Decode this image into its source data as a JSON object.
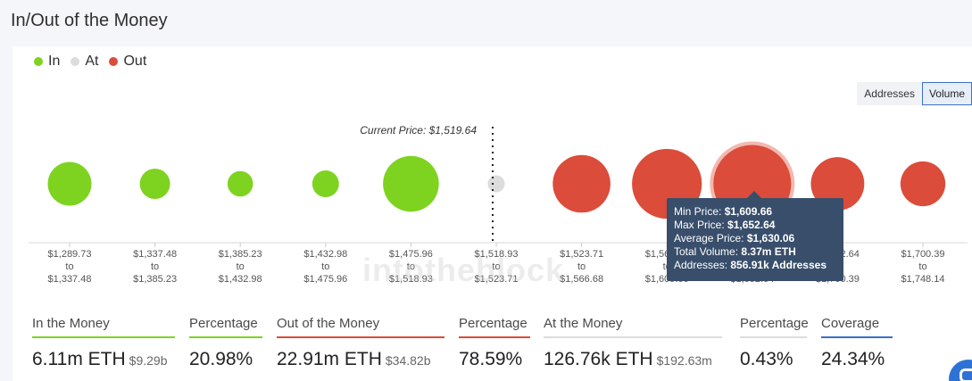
{
  "title": "In/Out of the Money",
  "legend": [
    {
      "label": "In",
      "color": "#7ed321"
    },
    {
      "label": "At",
      "color": "#dcdcdc"
    },
    {
      "label": "Out",
      "color": "#db4c3a"
    }
  ],
  "toggle": {
    "addresses": "Addresses",
    "volume": "Volume",
    "active": "Volume"
  },
  "current_price_label": "Current Price: $1,519.64",
  "watermark": "intotheblock",
  "tooltip": {
    "min_label": "Min Price:",
    "min_value": "$1,609.66",
    "max_label": "Max Price:",
    "max_value": "$1,652.64",
    "avg_label": "Average Price:",
    "avg_value": "$1,630.06",
    "vol_label": "Total Volume:",
    "vol_value": "8.37m ETH",
    "addr_label": "Addresses:",
    "addr_value": "856.91k Addresses"
  },
  "chart_data": {
    "type": "scatter",
    "title": "",
    "buckets": [
      {
        "from": "$1,289.73",
        "to": "$1,337.48",
        "status": "in"
      },
      {
        "from": "$1,337.48",
        "to": "$1,385.23",
        "status": "in"
      },
      {
        "from": "$1,385.23",
        "to": "$1,432.98",
        "status": "in"
      },
      {
        "from": "$1,432.98",
        "to": "$1,475.96",
        "status": "in"
      },
      {
        "from": "$1,475.96",
        "to": "$1,518.93",
        "status": "in"
      },
      {
        "from": "$1,518.93",
        "to": "$1,523.71",
        "status": "at"
      },
      {
        "from": "$1,523.71",
        "to": "$1,566.68",
        "status": "out"
      },
      {
        "from": "$1,566.68",
        "to": "$1,609.66",
        "status": "out"
      },
      {
        "from": "$1,609.66",
        "to": "$1,652.64",
        "status": "out",
        "highlighted": true
      },
      {
        "from": "$1,652.64",
        "to": "$1,700.39",
        "status": "out"
      },
      {
        "from": "$1,700.39",
        "to": "$1,748.14",
        "status": "out"
      }
    ],
    "relative_bubble_size": [
      0.72,
      0.5,
      0.42,
      0.44,
      0.92,
      0.28,
      0.95,
      1.15,
      1.28,
      0.88,
      0.74
    ],
    "to_word": "to"
  },
  "stats": [
    {
      "label": "In the Money",
      "value": "6.11m ETH",
      "sub": "$9.29b",
      "color": "#7ed321"
    },
    {
      "label": "Percentage",
      "value": "20.98%",
      "sub": "",
      "color": "#7ed321"
    },
    {
      "label": "Out of the Money",
      "value": "22.91m ETH",
      "sub": "$34.82b",
      "color": "#db4c3a"
    },
    {
      "label": "Percentage",
      "value": "78.59%",
      "sub": "",
      "color": "#db4c3a"
    },
    {
      "label": "At the Money",
      "value": "126.76k ETH",
      "sub": "$192.63m",
      "color": "#dcdcdc"
    },
    {
      "label": "Percentage",
      "value": "0.43%",
      "sub": "",
      "color": "#dcdcdc"
    },
    {
      "label": "Coverage",
      "value": "24.34%",
      "sub": "",
      "color": "#3b70c4"
    }
  ]
}
